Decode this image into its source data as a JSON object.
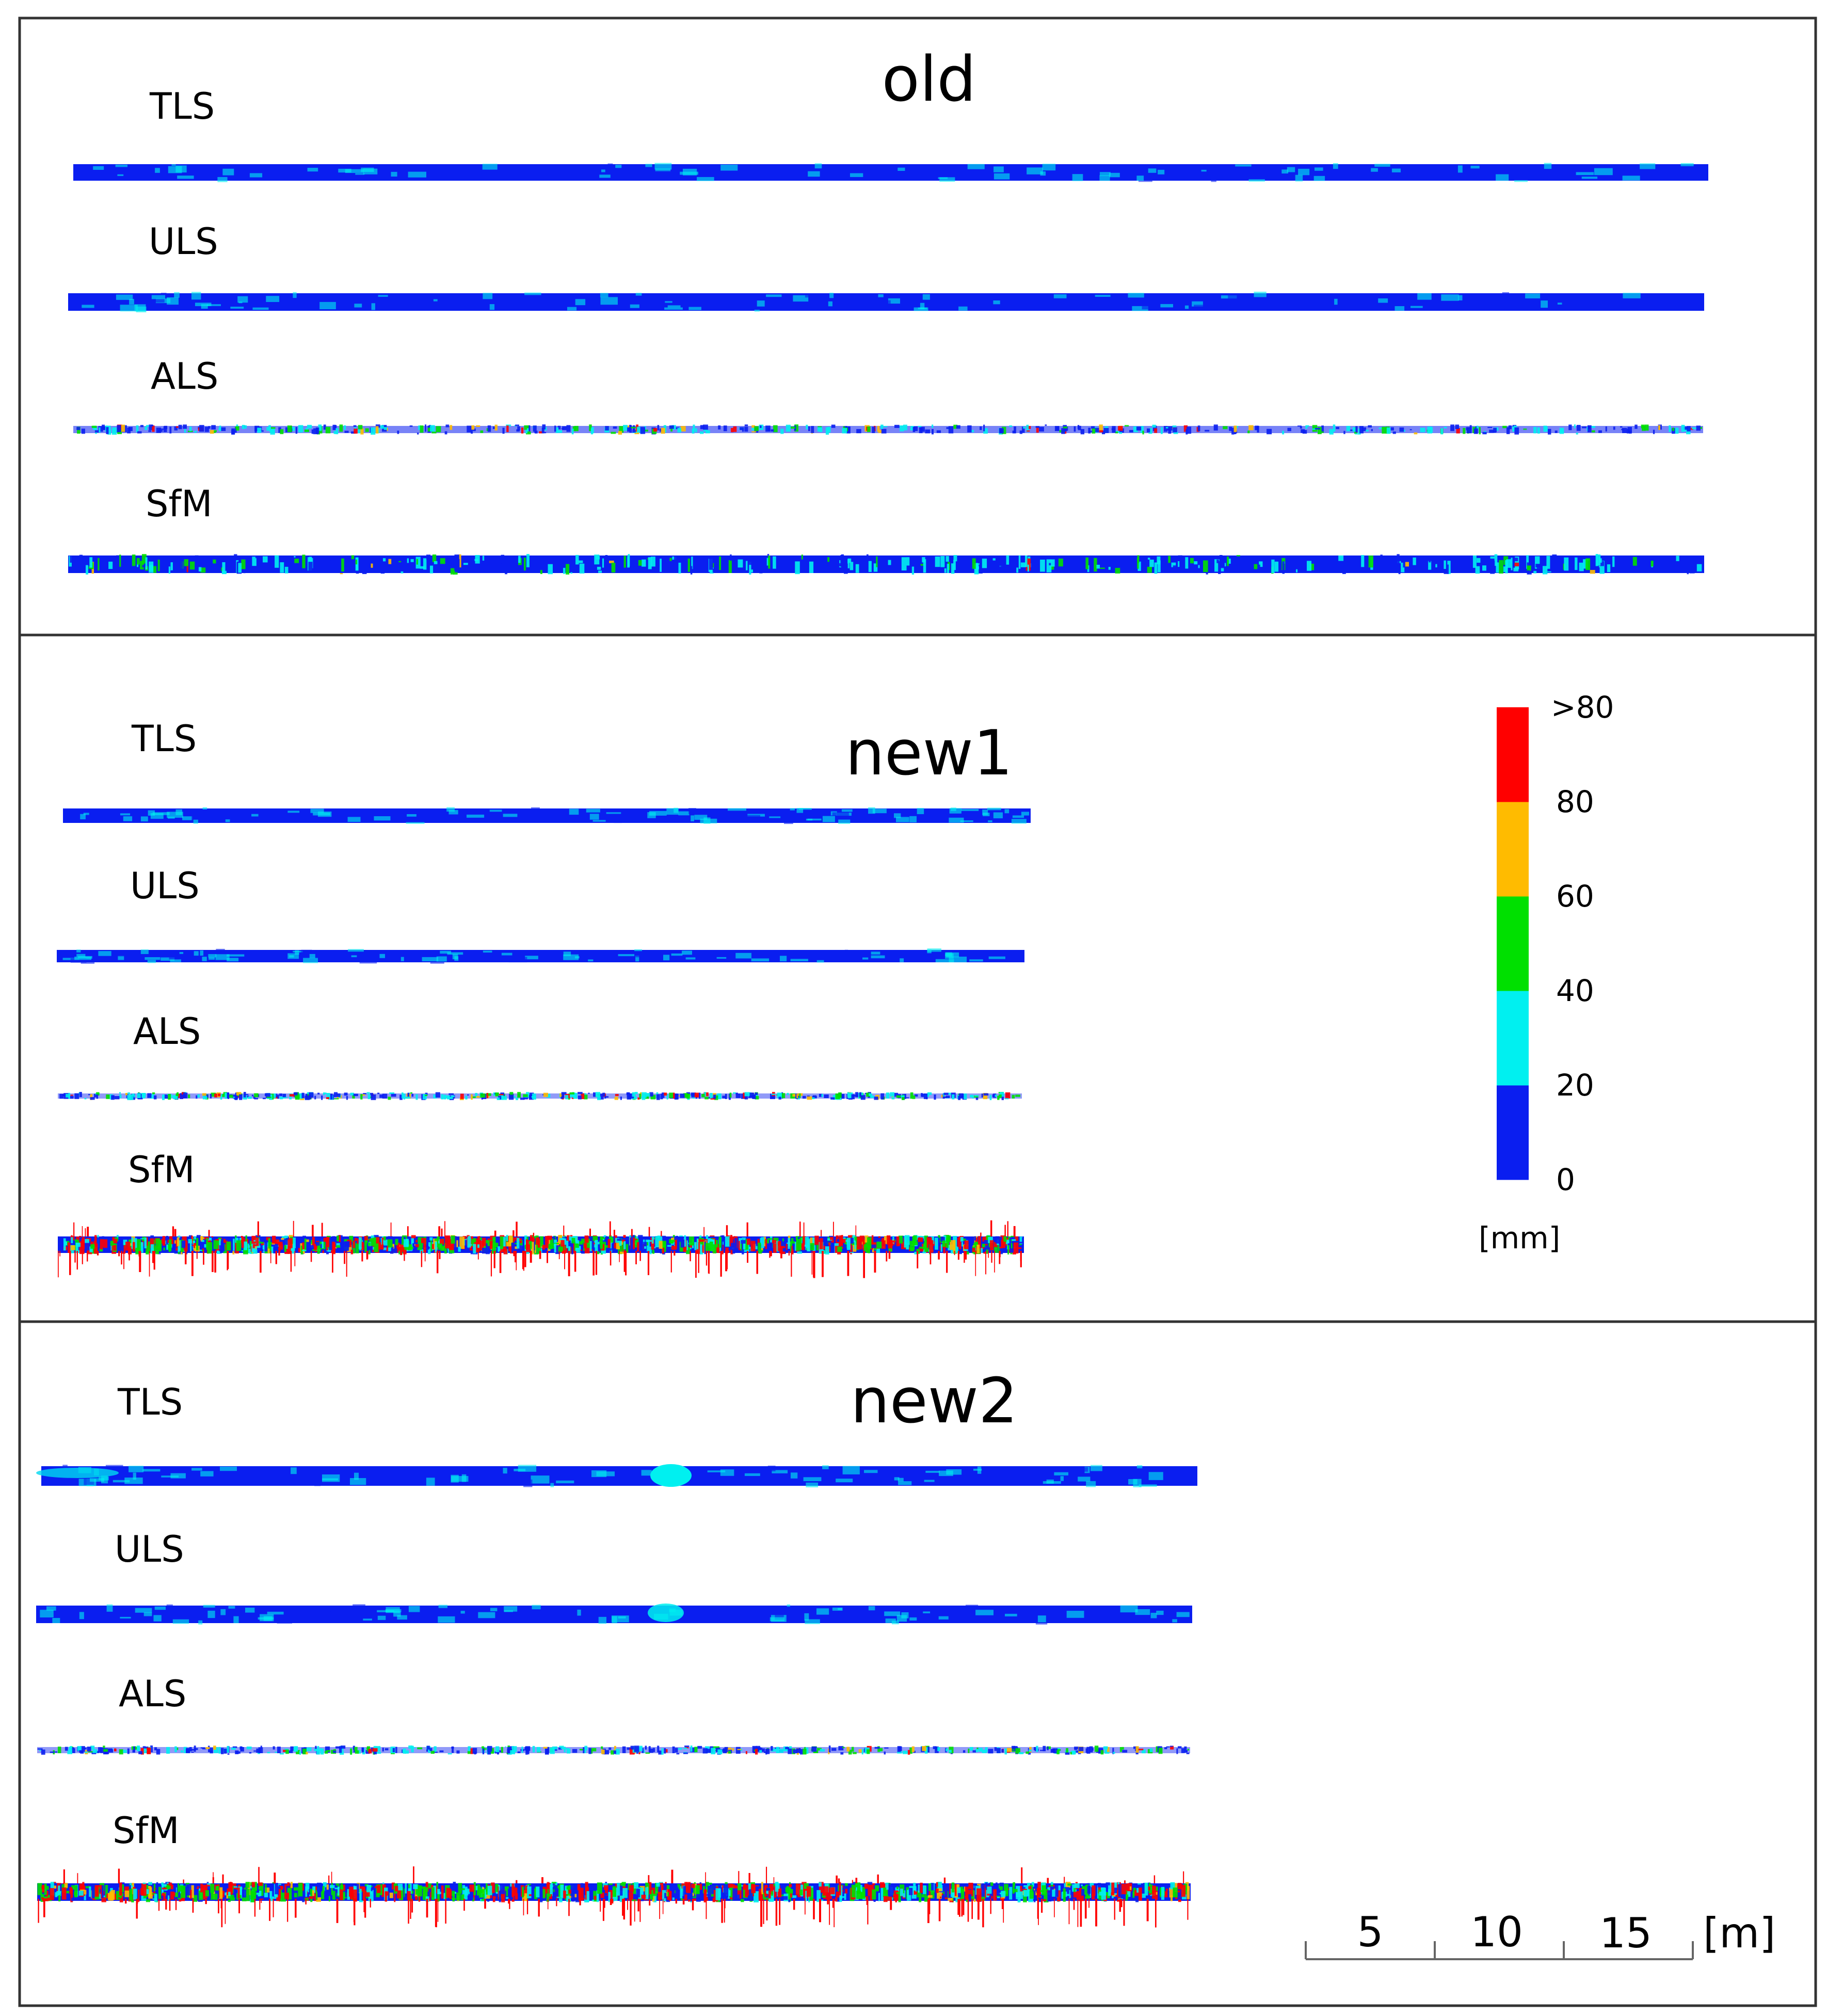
{
  "panels": [
    {
      "title": "old",
      "rows": [
        {
          "label": "TLS",
          "noise": "low"
        },
        {
          "label": "ULS",
          "noise": "low"
        },
        {
          "label": "ALS",
          "noise": "sparse"
        },
        {
          "label": "SfM",
          "noise": "medium"
        }
      ]
    },
    {
      "title": "new1",
      "rows": [
        {
          "label": "TLS",
          "noise": "low"
        },
        {
          "label": "ULS",
          "noise": "low"
        },
        {
          "label": "ALS",
          "noise": "sparse"
        },
        {
          "label": "SfM",
          "noise": "high"
        }
      ]
    },
    {
      "title": "new2",
      "rows": [
        {
          "label": "TLS",
          "noise": "low"
        },
        {
          "label": "ULS",
          "noise": "low"
        },
        {
          "label": "ALS",
          "noise": "sparse"
        },
        {
          "label": "SfM",
          "noise": "high"
        }
      ]
    }
  ],
  "colorbar": {
    "unit": "[mm]",
    "ticks": [
      "0",
      "20",
      "40",
      "60",
      "80",
      ">80"
    ],
    "bins": [
      {
        "from": 0,
        "to": 20,
        "color": "#0a1ef0"
      },
      {
        "from": 20,
        "to": 40,
        "color": "#00f0f0"
      },
      {
        "from": 40,
        "to": 60,
        "color": "#00e000"
      },
      {
        "from": 60,
        "to": 80,
        "color": "#ffbb00"
      },
      {
        "from": 80,
        "to": ">80",
        "color": "#ff0000"
      }
    ]
  },
  "scalebar": {
    "labels": [
      "5",
      "10",
      "15"
    ],
    "unit": "[m]"
  }
}
